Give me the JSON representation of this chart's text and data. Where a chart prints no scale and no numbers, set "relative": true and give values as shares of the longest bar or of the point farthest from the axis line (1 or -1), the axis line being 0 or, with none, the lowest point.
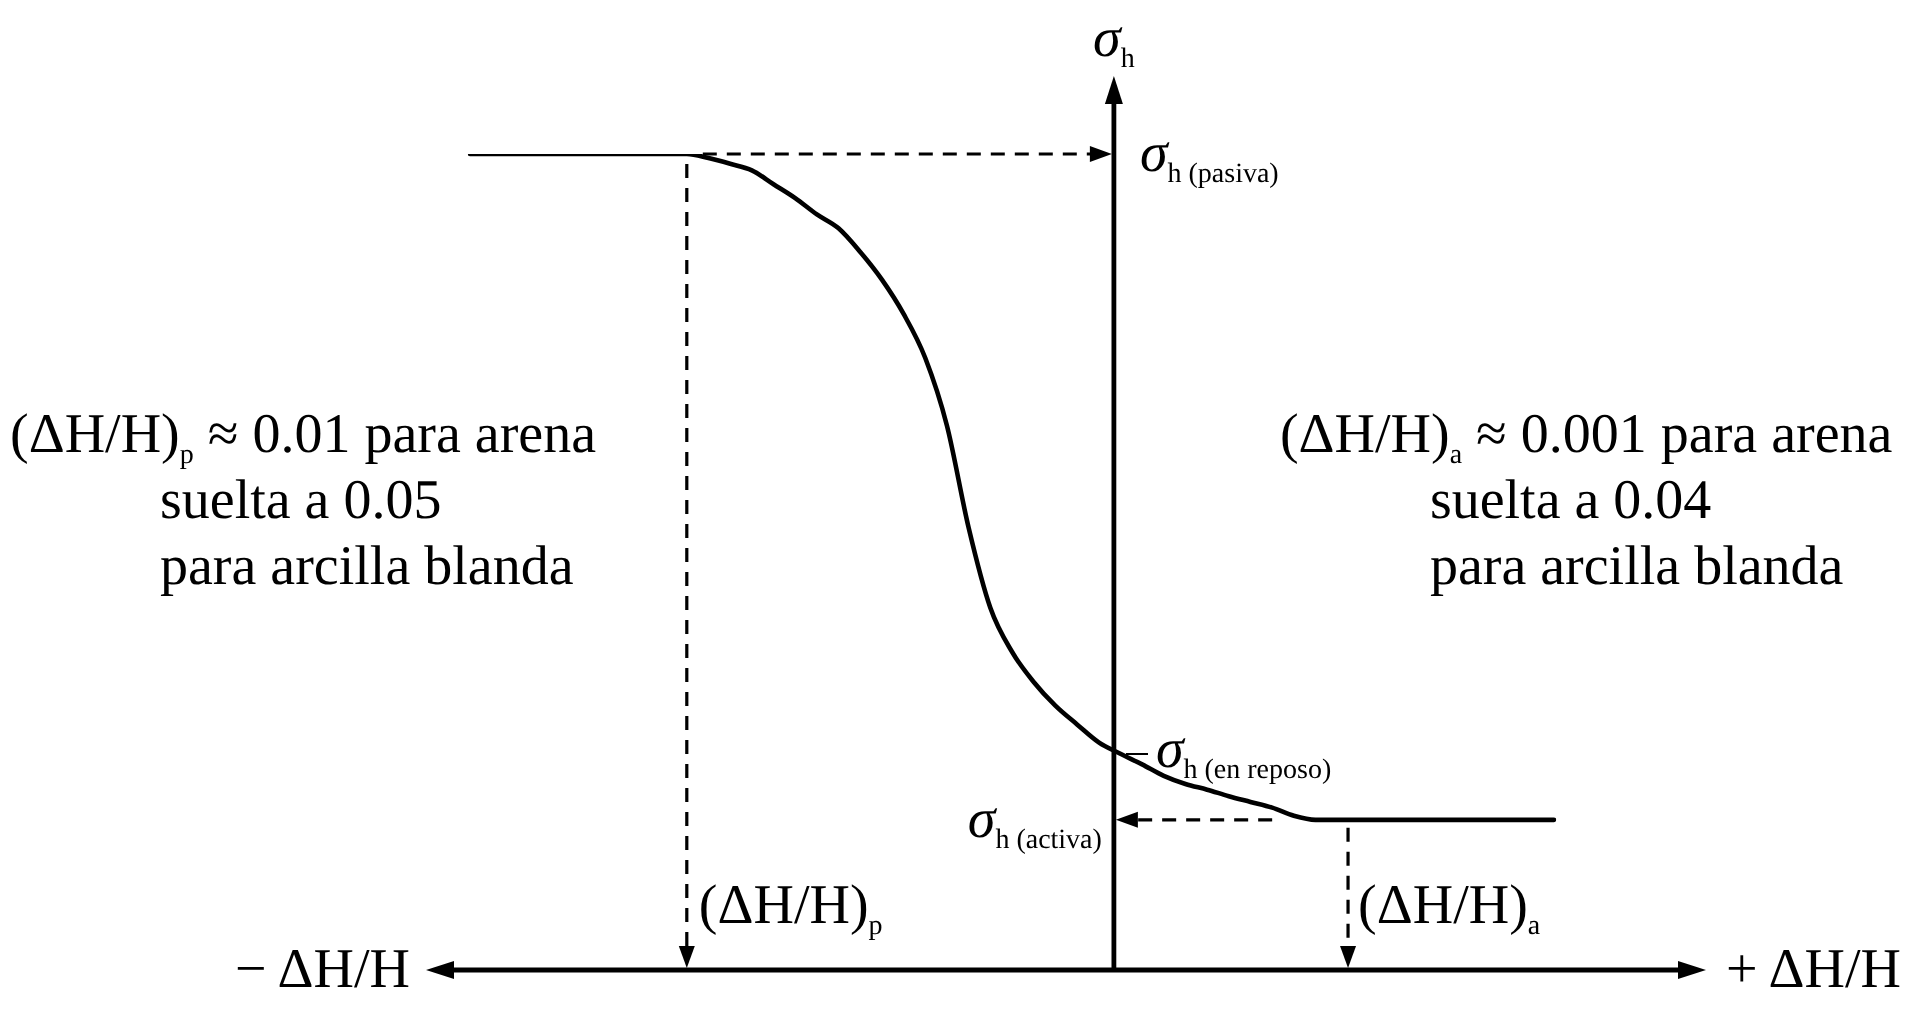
{
  "chart_data": {
    "type": "line",
    "ylabel": "σ$_{h}$",
    "categories": [
      null,
      null,
      null,
      null,
      null,
      null,
      null,
      null,
      null,
      null,
      null,
      null,
      null,
      null,
      null,
      null,
      null,
      null,
      null,
      null,
      null,
      null,
      null,
      null,
      null,
      null,
      null,
      null,
      null,
      null,
      null,
      null,
      null,
      null,
      null,
      null,
      null,
      null,
      null,
      null,
      null,
      null,
      null,
      null,
      null,
      null,
      null,
      null,
      null,
      null,
      null
    ],
    "values": [
      1,
      1,
      1,
      1,
      1,
      1,
      1,
      1,
      1,
      1,
      1,
      0.995,
      0.988,
      0.98,
      0.963,
      0.946,
      0.926,
      0.909,
      0.88,
      0.846,
      0.804,
      0.75,
      0.667,
      0.542,
      0.444,
      0.39,
      0.353,
      0.324,
      0.301,
      0.279,
      0.265,
      0.252,
      0.238,
      0.228,
      0.221,
      0.213,
      0.206,
      0.199,
      0.189,
      0.184,
      0.184,
      0.184,
      0.184,
      0.184,
      0.184,
      0.184,
      0.184,
      0.184,
      0.184,
      0.184,
      0.184
    ],
    "color": "#000000",
    "relative": true,
    "marker": "none",
    "line_style": "solid",
    "tick_labels": false,
    "annotations": [
      "σ$_{h (pasiva)}$",
      "σ$_{h (en reposo)}$",
      "σ$_{h (activa)}$",
      "(ΔH/H)$_{p}$ ≈ 0.01 para arena\nsuelta a 0.05\npara arcilla blanda",
      "(ΔH/H)$_{a}$ ≈ 0.001 para arena\nsuelta a 0.04\npara arcilla blanda",
      "(ΔH/H)$_{p}$",
      "(ΔH/H)$_{a}$",
      "− ΔH/H",
      "+ ΔH/H"
    ]
  }
}
